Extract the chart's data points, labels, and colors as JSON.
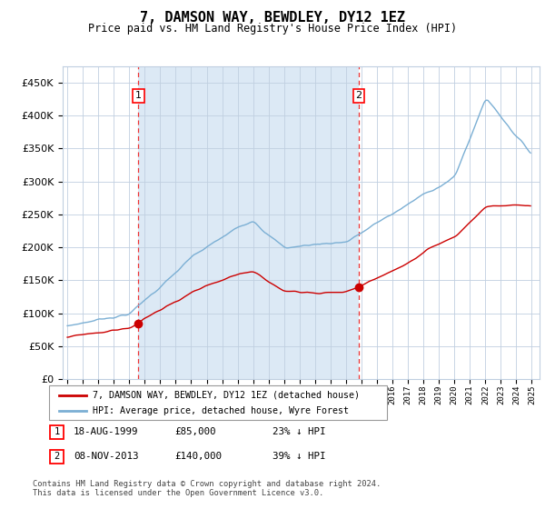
{
  "title": "7, DAMSON WAY, BEWDLEY, DY12 1EZ",
  "subtitle": "Price paid vs. HM Land Registry's House Price Index (HPI)",
  "sale1_date": "18-AUG-1999",
  "sale1_price": 85000,
  "sale1_label": "23% ↓ HPI",
  "sale2_date": "08-NOV-2013",
  "sale2_price": 140000,
  "sale2_label": "39% ↓ HPI",
  "legend1": "7, DAMSON WAY, BEWDLEY, DY12 1EZ (detached house)",
  "legend2": "HPI: Average price, detached house, Wyre Forest",
  "footer": "Contains HM Land Registry data © Crown copyright and database right 2024.\nThis data is licensed under the Open Government Licence v3.0.",
  "hpi_color": "#7bafd4",
  "price_color": "#cc0000",
  "background_color": "#dce9f5",
  "grid_color": "#c0cfe0",
  "vline_color": "#ee3333",
  "ylim": [
    0,
    475000
  ],
  "yticks": [
    0,
    50000,
    100000,
    150000,
    200000,
    250000,
    300000,
    350000,
    400000,
    450000
  ]
}
